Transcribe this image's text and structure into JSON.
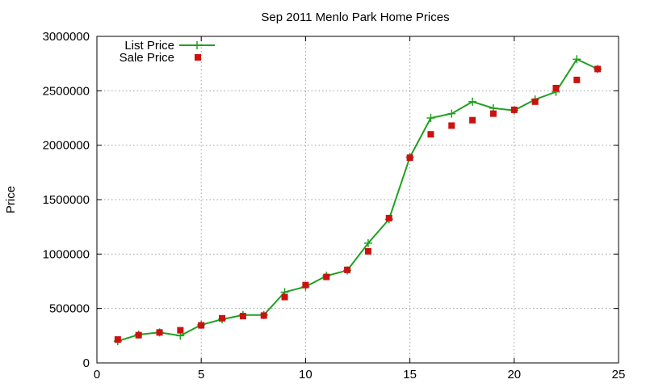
{
  "chart_data": {
    "type": "line",
    "title": "Sep 2011 Menlo Park Home Prices",
    "xlabel": "",
    "ylabel": "Price",
    "xlim": [
      0,
      25
    ],
    "ylim": [
      0,
      3000000
    ],
    "x_ticks": [
      0,
      5,
      10,
      15,
      20,
      25
    ],
    "y_ticks": [
      0,
      500000,
      1000000,
      1500000,
      2000000,
      2500000,
      3000000
    ],
    "grid": true,
    "legend_position": "top-left",
    "series": [
      {
        "name": "List Price",
        "style": "line-plus",
        "color": "#1fa01f",
        "x": [
          1,
          2,
          3,
          4,
          5,
          6,
          7,
          8,
          9,
          10,
          11,
          12,
          13,
          14,
          15,
          16,
          17,
          18,
          19,
          20,
          21,
          22,
          23,
          24
        ],
        "values": [
          200000,
          260000,
          280000,
          250000,
          350000,
          400000,
          440000,
          440000,
          650000,
          700000,
          800000,
          850000,
          1100000,
          1320000,
          1890000,
          2250000,
          2290000,
          2400000,
          2340000,
          2320000,
          2420000,
          2490000,
          2790000,
          2700000
        ]
      },
      {
        "name": "Sale Price",
        "style": "square-points",
        "color": "#cc1111",
        "x": [
          1,
          2,
          3,
          4,
          5,
          6,
          7,
          8,
          9,
          10,
          11,
          12,
          13,
          14,
          15,
          16,
          17,
          18,
          19,
          20,
          21,
          22,
          23,
          24
        ],
        "values": [
          215000,
          255000,
          280000,
          300000,
          345000,
          410000,
          430000,
          435000,
          605000,
          715000,
          790000,
          855000,
          1025000,
          1330000,
          1885000,
          2100000,
          2180000,
          2230000,
          2290000,
          2325000,
          2400000,
          2525000,
          2600000,
          2700000
        ]
      }
    ]
  }
}
